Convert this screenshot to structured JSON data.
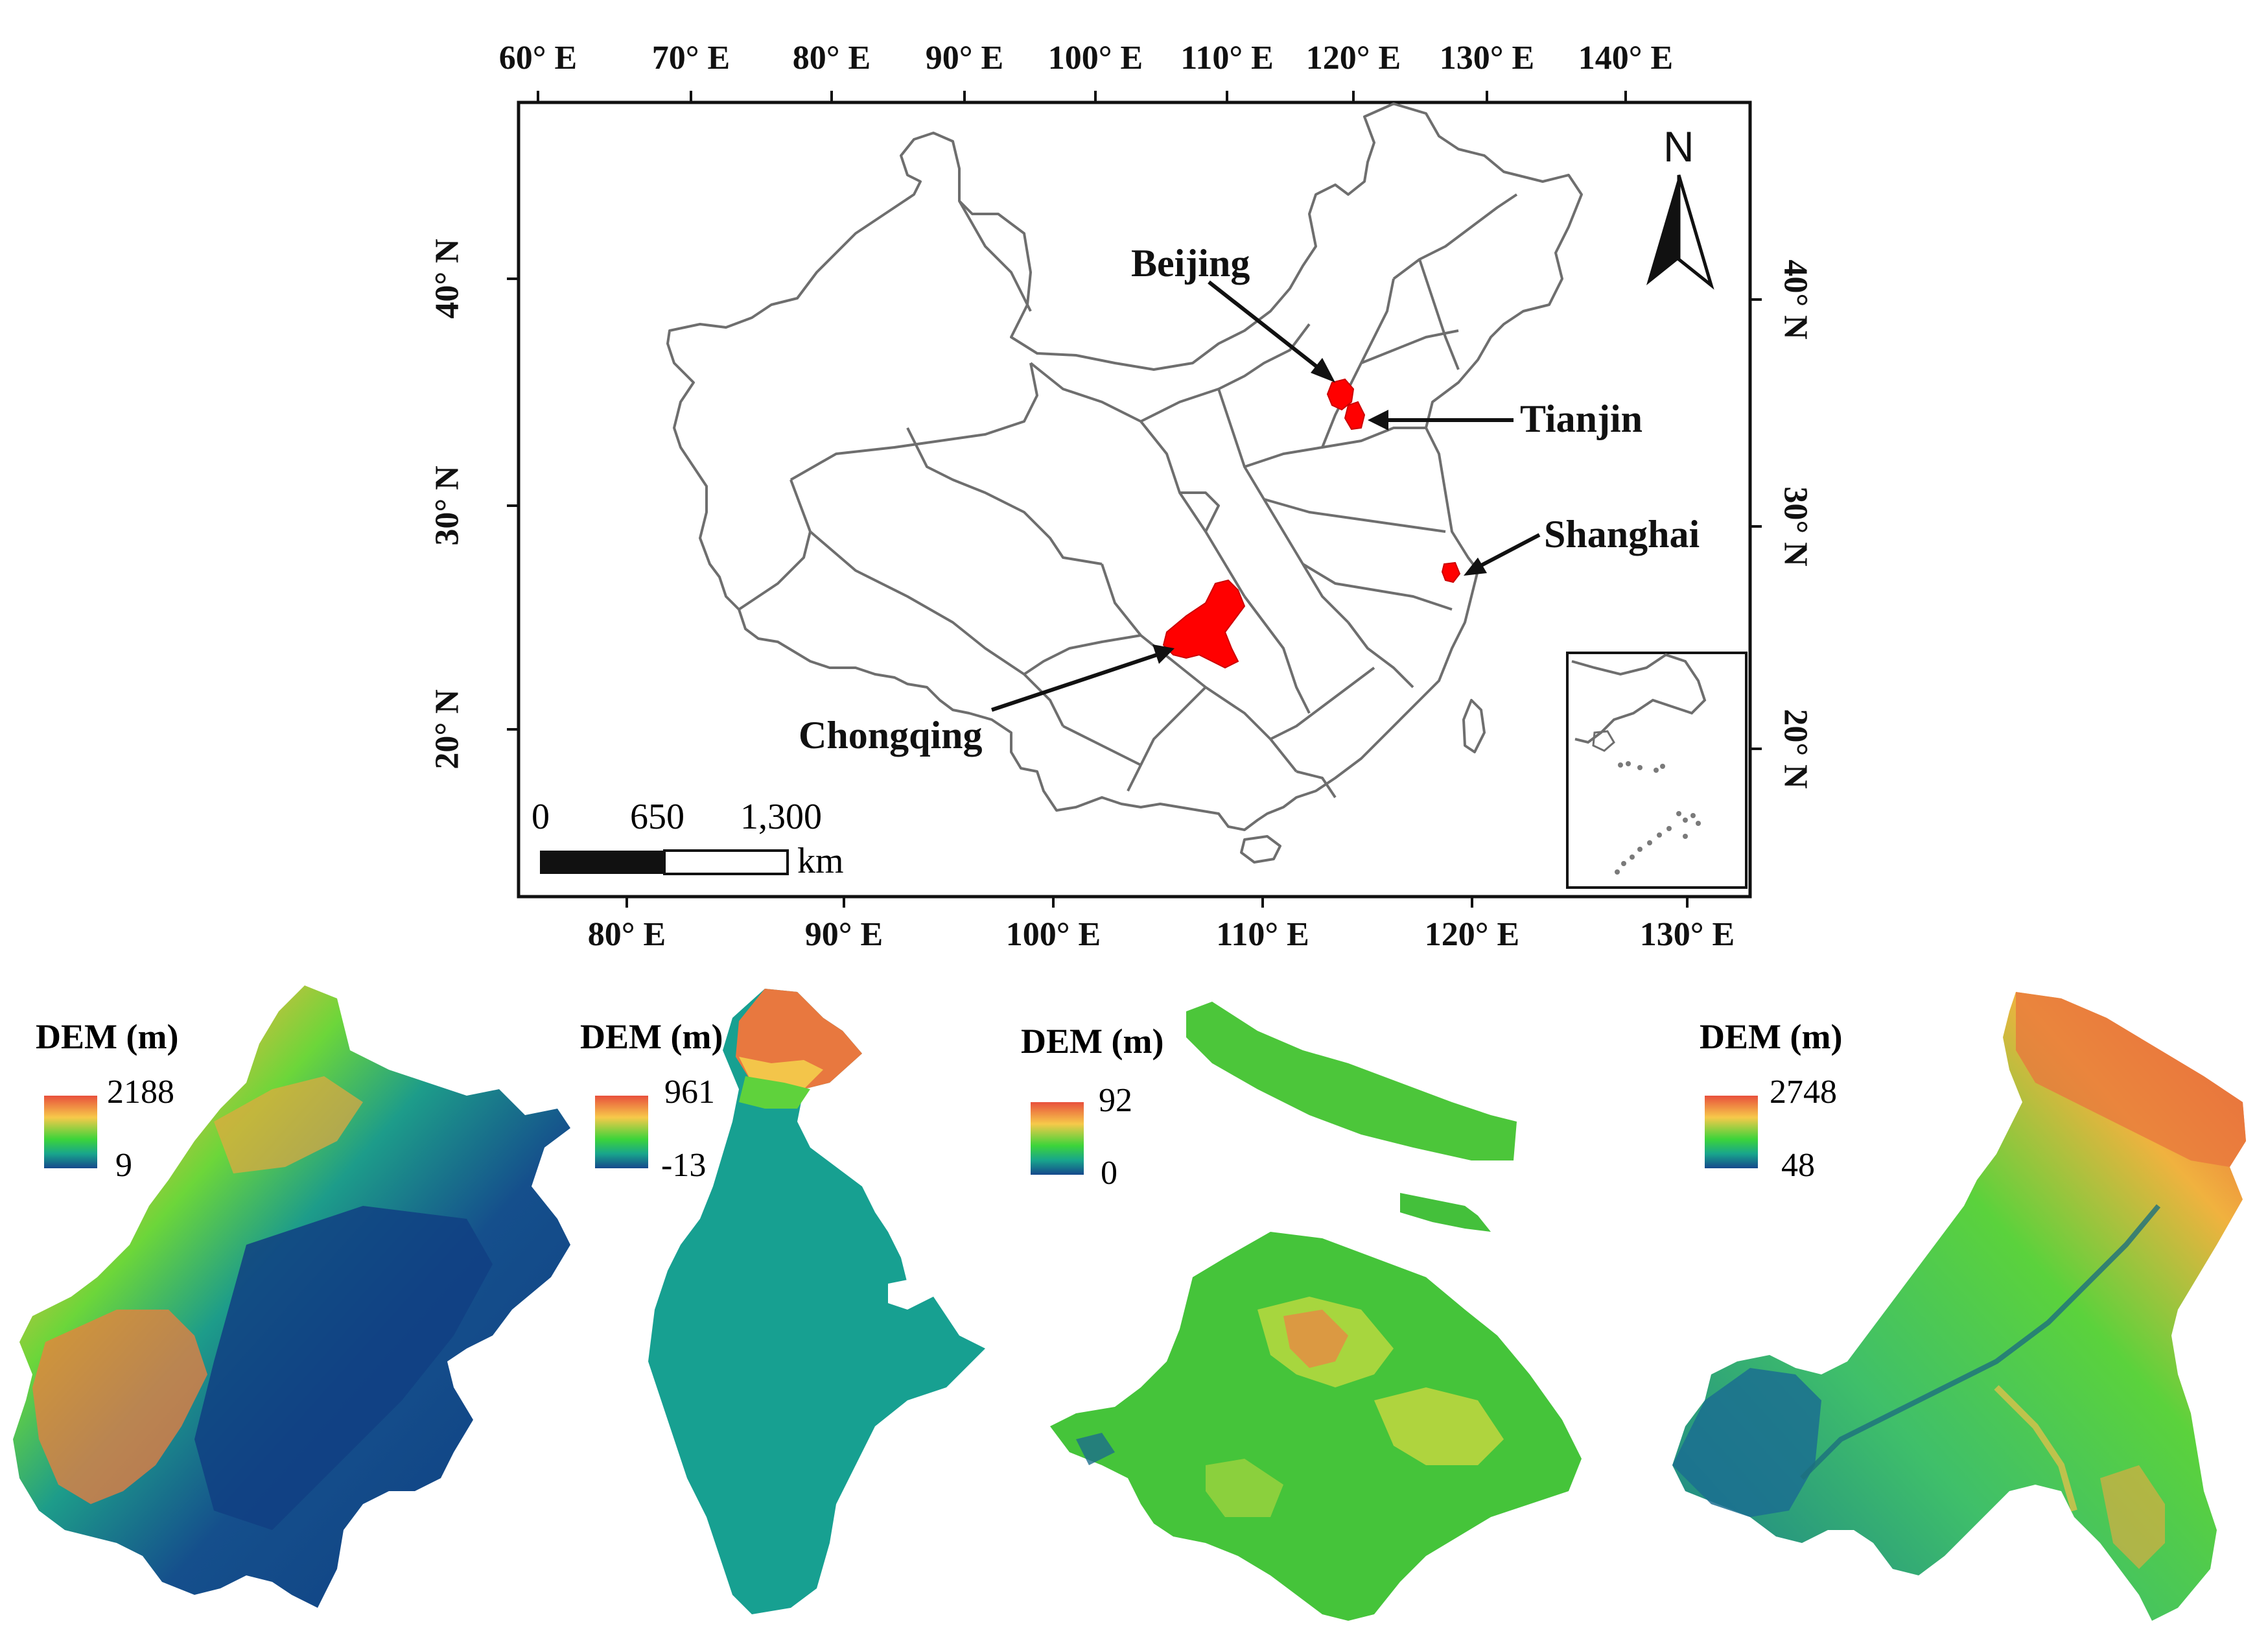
{
  "map": {
    "top_axis_ticks": [
      "60° E",
      "70° E",
      "80° E",
      "90° E",
      "100° E",
      "110° E",
      "120° E",
      "130° E",
      "140° E"
    ],
    "bottom_axis_ticks": [
      "80° E",
      "90° E",
      "100° E",
      "110° E",
      "120° E",
      "130° E"
    ],
    "left_axis_ticks": [
      "40° N",
      "30° N",
      "20° N"
    ],
    "right_axis_ticks": [
      "40° N",
      "30° N",
      "20° N"
    ],
    "north_label": "N",
    "cities": {
      "beijing": "Beijing",
      "tianjin": "Tianjin",
      "shanghai": "Shanghai",
      "chongqing": "Chongqing"
    },
    "scale_bar": {
      "ticks": [
        "0",
        "650",
        "1,300"
      ],
      "unit": "km"
    },
    "highlight_color": "#ff0000",
    "boundary_color": "#707070"
  },
  "dem_panels": [
    {
      "title": "DEM (m)",
      "max": "2188",
      "min": "9"
    },
    {
      "title": "DEM (m)",
      "max": "961",
      "min": "-13"
    },
    {
      "title": "DEM (m)",
      "max": "92",
      "min": "0"
    },
    {
      "title": "DEM (m)",
      "max": "2748",
      "min": "48"
    }
  ]
}
